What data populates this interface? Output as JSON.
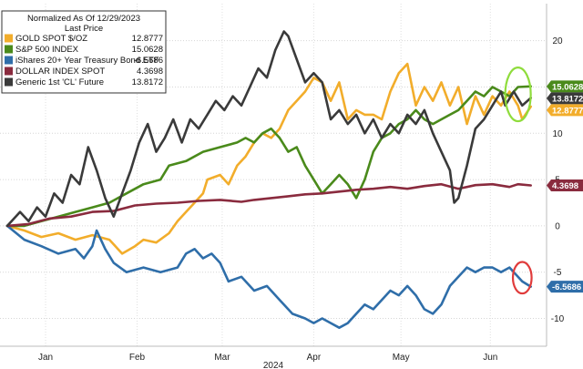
{
  "chart_data": {
    "type": "line",
    "legend": {
      "title": "Normalized As Of 12/29/2023",
      "subtitle": "Last Price",
      "placement": "top-left"
    },
    "xlabel": "2024",
    "x_ticks": [
      "Jan",
      "Feb",
      "Mar",
      "Apr",
      "May",
      "Jun"
    ],
    "x_range": [
      0,
      125
    ],
    "x_tick_positions": [
      9,
      30.5,
      50.5,
      72,
      92.5,
      113.5
    ],
    "ylim": [
      -13,
      24
    ],
    "y_ticks": [
      -10,
      -5,
      0,
      5,
      10,
      15,
      20
    ],
    "y_tick_labels": [
      "-10",
      "-5",
      "0",
      "5",
      "10",
      "15",
      "20"
    ],
    "grid": true,
    "series": [
      {
        "name": "GOLD SPOT $/OZ",
        "color": "#f2ad2b",
        "last": 12.8777,
        "last_label": "12.8777",
        "points": [
          [
            0,
            0
          ],
          [
            4,
            -0.5
          ],
          [
            8,
            -1.2
          ],
          [
            12,
            -0.8
          ],
          [
            16,
            -1.5
          ],
          [
            20,
            -1.0
          ],
          [
            24,
            -1.5
          ],
          [
            27,
            -3.0
          ],
          [
            30,
            -2.2
          ],
          [
            32,
            -1.5
          ],
          [
            35,
            -1.8
          ],
          [
            38,
            -0.8
          ],
          [
            40,
            0.5
          ],
          [
            42,
            1.5
          ],
          [
            44,
            2.5
          ],
          [
            46,
            3.5
          ],
          [
            47,
            5.0
          ],
          [
            50,
            5.5
          ],
          [
            52,
            4.5
          ],
          [
            54,
            6.5
          ],
          [
            56,
            7.5
          ],
          [
            58,
            9.0
          ],
          [
            60,
            10.0
          ],
          [
            62,
            9.5
          ],
          [
            64,
            10.5
          ],
          [
            66,
            12.5
          ],
          [
            68,
            13.5
          ],
          [
            70,
            14.5
          ],
          [
            72,
            16.0
          ],
          [
            74,
            15.5
          ],
          [
            76,
            13.5
          ],
          [
            78,
            15.5
          ],
          [
            80,
            11.5
          ],
          [
            82,
            12.5
          ],
          [
            84,
            12.0
          ],
          [
            86,
            12.0
          ],
          [
            88,
            11.5
          ],
          [
            90,
            14.5
          ],
          [
            92,
            16.5
          ],
          [
            94,
            17.5
          ],
          [
            96,
            13.0
          ],
          [
            98,
            15.0
          ],
          [
            100,
            13.5
          ],
          [
            102,
            15.5
          ],
          [
            104,
            13.0
          ],
          [
            106,
            15.0
          ],
          [
            108,
            11.0
          ],
          [
            110,
            14.0
          ],
          [
            112,
            12.0
          ],
          [
            114,
            14.0
          ],
          [
            116,
            13.0
          ],
          [
            118,
            14.5
          ],
          [
            120,
            13.0
          ],
          [
            121,
            11.5
          ],
          [
            123,
            12.8777
          ]
        ]
      },
      {
        "name": "S&P 500 INDEX",
        "color": "#4a8a1b",
        "last": 15.0628,
        "last_label": "15.0628",
        "points": [
          [
            0,
            0
          ],
          [
            4,
            0
          ],
          [
            8,
            0.5
          ],
          [
            12,
            1.0
          ],
          [
            16,
            1.5
          ],
          [
            20,
            2.0
          ],
          [
            24,
            2.5
          ],
          [
            28,
            3.5
          ],
          [
            32,
            4.5
          ],
          [
            36,
            5.0
          ],
          [
            38,
            6.5
          ],
          [
            42,
            7.0
          ],
          [
            46,
            8.0
          ],
          [
            50,
            8.5
          ],
          [
            54,
            9.0
          ],
          [
            56,
            9.5
          ],
          [
            58,
            9.0
          ],
          [
            60,
            10.0
          ],
          [
            62,
            10.5
          ],
          [
            64,
            9.5
          ],
          [
            66,
            8.0
          ],
          [
            68,
            8.5
          ],
          [
            70,
            6.5
          ],
          [
            72,
            5.0
          ],
          [
            74,
            3.5
          ],
          [
            76,
            4.5
          ],
          [
            78,
            5.5
          ],
          [
            80,
            4.5
          ],
          [
            82,
            3.0
          ],
          [
            84,
            5.0
          ],
          [
            86,
            8.0
          ],
          [
            88,
            9.5
          ],
          [
            90,
            10.0
          ],
          [
            92,
            11.0
          ],
          [
            94,
            11.5
          ],
          [
            96,
            12.5
          ],
          [
            98,
            11.5
          ],
          [
            100,
            11.0
          ],
          [
            102,
            11.5
          ],
          [
            104,
            12.0
          ],
          [
            106,
            12.5
          ],
          [
            108,
            13.5
          ],
          [
            110,
            14.5
          ],
          [
            112,
            14.0
          ],
          [
            114,
            15.0
          ],
          [
            116,
            14.5
          ],
          [
            118,
            14.0
          ],
          [
            120,
            15.0
          ],
          [
            123,
            15.0628
          ]
        ]
      },
      {
        "name": "iShares 20+ Year Treasury Bond ETF",
        "color": "#2f6ea9",
        "last": -6.5686,
        "last_label": "-6.5686",
        "points": [
          [
            0,
            0
          ],
          [
            4,
            -1.5
          ],
          [
            8,
            -2.2
          ],
          [
            12,
            -3.0
          ],
          [
            16,
            -2.5
          ],
          [
            18,
            -3.5
          ],
          [
            20,
            -2.2
          ],
          [
            21,
            -0.5
          ],
          [
            23,
            -2.5
          ],
          [
            25,
            -4.0
          ],
          [
            28,
            -5.0
          ],
          [
            32,
            -4.5
          ],
          [
            36,
            -5.0
          ],
          [
            40,
            -4.5
          ],
          [
            42,
            -3.0
          ],
          [
            44,
            -2.5
          ],
          [
            46,
            -3.5
          ],
          [
            48,
            -3.0
          ],
          [
            50,
            -4.0
          ],
          [
            52,
            -6.0
          ],
          [
            55,
            -5.5
          ],
          [
            58,
            -7.0
          ],
          [
            61,
            -6.5
          ],
          [
            64,
            -8.0
          ],
          [
            67,
            -9.5
          ],
          [
            70,
            -10.0
          ],
          [
            72,
            -10.5
          ],
          [
            74,
            -10.0
          ],
          [
            76,
            -10.5
          ],
          [
            78,
            -11.0
          ],
          [
            80,
            -10.5
          ],
          [
            82,
            -9.5
          ],
          [
            84,
            -8.5
          ],
          [
            86,
            -9.0
          ],
          [
            88,
            -8.0
          ],
          [
            90,
            -7.0
          ],
          [
            92,
            -7.5
          ],
          [
            94,
            -6.5
          ],
          [
            96,
            -7.5
          ],
          [
            98,
            -9.0
          ],
          [
            100,
            -9.5
          ],
          [
            102,
            -8.5
          ],
          [
            104,
            -6.5
          ],
          [
            106,
            -5.5
          ],
          [
            108,
            -4.5
          ],
          [
            110,
            -5.0
          ],
          [
            112,
            -4.5
          ],
          [
            114,
            -4.5
          ],
          [
            116,
            -5.0
          ],
          [
            118,
            -4.5
          ],
          [
            120,
            -5.5
          ],
          [
            121,
            -6.0
          ],
          [
            123,
            -6.5686
          ]
        ]
      },
      {
        "name": "DOLLAR INDEX SPOT",
        "color": "#8a2b3e",
        "last": 4.3698,
        "last_label": "4.3698",
        "points": [
          [
            0,
            0
          ],
          [
            5,
            0.2
          ],
          [
            10,
            0.8
          ],
          [
            15,
            1.0
          ],
          [
            20,
            1.5
          ],
          [
            25,
            1.6
          ],
          [
            30,
            2.2
          ],
          [
            35,
            2.4
          ],
          [
            40,
            2.5
          ],
          [
            45,
            2.7
          ],
          [
            50,
            2.8
          ],
          [
            55,
            2.6
          ],
          [
            58,
            2.8
          ],
          [
            62,
            3.0
          ],
          [
            66,
            3.2
          ],
          [
            70,
            3.4
          ],
          [
            74,
            3.5
          ],
          [
            78,
            3.7
          ],
          [
            82,
            3.9
          ],
          [
            86,
            4.0
          ],
          [
            90,
            4.2
          ],
          [
            94,
            4.0
          ],
          [
            98,
            4.3
          ],
          [
            102,
            4.5
          ],
          [
            106,
            4.0
          ],
          [
            110,
            4.4
          ],
          [
            114,
            4.5
          ],
          [
            118,
            4.2
          ],
          [
            120,
            4.5
          ],
          [
            123,
            4.3698
          ]
        ]
      },
      {
        "name": "Generic 1st 'CL' Future",
        "color": "#3a3a3a",
        "last": 13.8172,
        "last_label": "13.8172",
        "points": [
          [
            0,
            0
          ],
          [
            3,
            1.5
          ],
          [
            5,
            0.5
          ],
          [
            7,
            2.0
          ],
          [
            9,
            1.0
          ],
          [
            11,
            3.5
          ],
          [
            13,
            2.5
          ],
          [
            15,
            5.5
          ],
          [
            17,
            4.5
          ],
          [
            19,
            8.5
          ],
          [
            21,
            6.0
          ],
          [
            23,
            3.0
          ],
          [
            25,
            1.0
          ],
          [
            27,
            3.5
          ],
          [
            29,
            6.0
          ],
          [
            31,
            9.0
          ],
          [
            33,
            11.0
          ],
          [
            35,
            8.0
          ],
          [
            37,
            9.5
          ],
          [
            39,
            11.5
          ],
          [
            41,
            9.0
          ],
          [
            43,
            11.5
          ],
          [
            45,
            10.5
          ],
          [
            47,
            12.0
          ],
          [
            49,
            13.5
          ],
          [
            51,
            12.5
          ],
          [
            53,
            14.0
          ],
          [
            55,
            13.0
          ],
          [
            57,
            15.0
          ],
          [
            59,
            17.0
          ],
          [
            61,
            16.0
          ],
          [
            63,
            19.0
          ],
          [
            65,
            21.0
          ],
          [
            66,
            20.5
          ],
          [
            68,
            18.0
          ],
          [
            70,
            15.5
          ],
          [
            72,
            16.5
          ],
          [
            74,
            15.5
          ],
          [
            76,
            11.5
          ],
          [
            78,
            12.5
          ],
          [
            80,
            11.0
          ],
          [
            82,
            12.0
          ],
          [
            84,
            10.0
          ],
          [
            86,
            11.5
          ],
          [
            88,
            9.5
          ],
          [
            90,
            11.0
          ],
          [
            92,
            10.0
          ],
          [
            94,
            12.0
          ],
          [
            96,
            11.0
          ],
          [
            98,
            12.5
          ],
          [
            100,
            10.0
          ],
          [
            102,
            8.0
          ],
          [
            104,
            6.0
          ],
          [
            105,
            2.5
          ],
          [
            106,
            3.0
          ],
          [
            108,
            6.5
          ],
          [
            110,
            10.5
          ],
          [
            112,
            11.5
          ],
          [
            114,
            13.0
          ],
          [
            116,
            14.5
          ],
          [
            117,
            13.0
          ],
          [
            119,
            14.5
          ],
          [
            121,
            13.0
          ],
          [
            123,
            13.8172
          ]
        ]
      }
    ],
    "highlights": [
      {
        "label": "highlight-circle-top",
        "x": 120,
        "y": 14.2,
        "rx": 3,
        "ry": 2.9,
        "color": "#8fdc3c"
      },
      {
        "label": "highlight-circle-bottom",
        "x": 121,
        "y": -5.6,
        "rx": 2.2,
        "ry": 1.7,
        "color": "#e03b3b"
      }
    ]
  }
}
